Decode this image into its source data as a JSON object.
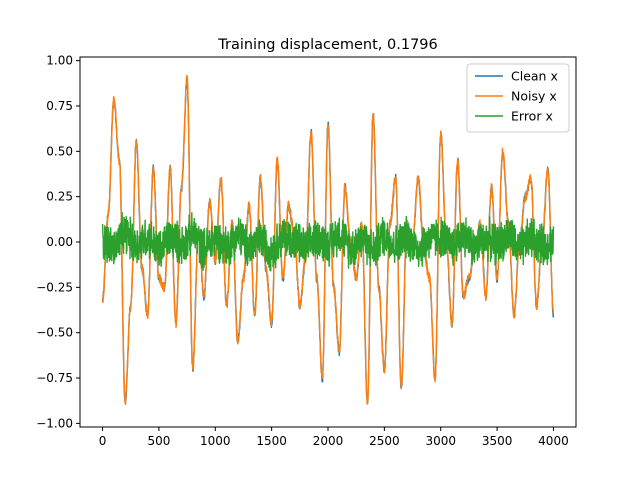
{
  "chart_data": {
    "type": "line",
    "title": "Training displacement, 0.1796",
    "xlabel": "",
    "ylabel": "",
    "xlim": [
      -200,
      4200
    ],
    "ylim": [
      -1.02,
      1.02
    ],
    "xticks": [
      0,
      500,
      1000,
      1500,
      2000,
      2500,
      3000,
      3500,
      4000
    ],
    "yticks": [
      -1.0,
      -0.75,
      -0.5,
      -0.25,
      0.0,
      0.25,
      0.5,
      0.75,
      1.0
    ],
    "ytick_labels": [
      "−1.00",
      "−0.75",
      "−0.50",
      "−0.25",
      "0.00",
      "0.25",
      "0.50",
      "0.75",
      "1.00"
    ],
    "legend_position": "top-right",
    "grid": false,
    "series": [
      {
        "name": "Clean x",
        "color": "#1f77b4",
        "x": [
          0,
          50,
          100,
          150,
          200,
          250,
          300,
          350,
          400,
          450,
          500,
          550,
          600,
          650,
          700,
          750,
          800,
          850,
          900,
          950,
          1000,
          1050,
          1100,
          1150,
          1200,
          1250,
          1300,
          1350,
          1400,
          1450,
          1500,
          1550,
          1600,
          1650,
          1700,
          1750,
          1800,
          1850,
          1900,
          1950,
          2000,
          2050,
          2100,
          2150,
          2200,
          2250,
          2300,
          2350,
          2400,
          2450,
          2500,
          2550,
          2600,
          2650,
          2700,
          2750,
          2800,
          2850,
          2900,
          2950,
          3000,
          3050,
          3100,
          3150,
          3200,
          3250,
          3300,
          3350,
          3400,
          3450,
          3500,
          3550,
          3600,
          3650,
          3700,
          3750,
          3800,
          3850,
          3900,
          3950,
          4000
        ],
        "values": [
          -0.32,
          0.15,
          0.78,
          0.45,
          -0.88,
          -0.35,
          0.55,
          -0.15,
          -0.4,
          0.4,
          -0.2,
          -0.25,
          0.4,
          -0.45,
          0.3,
          0.9,
          -0.7,
          0.05,
          -0.3,
          0.22,
          -0.1,
          0.35,
          -0.35,
          0.1,
          -0.55,
          -0.2,
          0.2,
          -0.4,
          0.35,
          -0.15,
          -0.45,
          0.45,
          -0.2,
          0.2,
          0.05,
          -0.35,
          -0.1,
          0.6,
          -0.2,
          -0.75,
          0.65,
          -0.25,
          -0.6,
          0.3,
          0.0,
          -0.2,
          0.1,
          -0.88,
          0.7,
          -0.25,
          -0.7,
          0.1,
          0.35,
          -0.8,
          0.1,
          0.0,
          0.35,
          -0.05,
          -0.2,
          -0.75,
          0.6,
          0.0,
          -0.45,
          0.45,
          -0.3,
          -0.2,
          -0.05,
          0.1,
          -0.3,
          0.3,
          -0.2,
          0.5,
          0.1,
          -0.4,
          0.0,
          0.25,
          0.35,
          -0.35,
          0.0,
          0.4,
          -0.4
        ]
      },
      {
        "name": "Noisy x",
        "color": "#ff7f0e",
        "x": [
          0,
          50,
          100,
          150,
          200,
          250,
          300,
          350,
          400,
          450,
          500,
          550,
          600,
          650,
          700,
          750,
          800,
          850,
          900,
          950,
          1000,
          1050,
          1100,
          1150,
          1200,
          1250,
          1300,
          1350,
          1400,
          1450,
          1500,
          1550,
          1600,
          1650,
          1700,
          1750,
          1800,
          1850,
          1900,
          1950,
          2000,
          2050,
          2100,
          2150,
          2200,
          2250,
          2300,
          2350,
          2400,
          2450,
          2500,
          2550,
          2600,
          2650,
          2700,
          2750,
          2800,
          2850,
          2900,
          2950,
          3000,
          3050,
          3100,
          3150,
          3200,
          3250,
          3300,
          3350,
          3400,
          3450,
          3500,
          3550,
          3600,
          3650,
          3700,
          3750,
          3800,
          3850,
          3900,
          3950,
          4000
        ],
        "values": [
          -0.32,
          0.15,
          0.78,
          0.45,
          -0.88,
          -0.35,
          0.55,
          -0.15,
          -0.4,
          0.4,
          -0.2,
          -0.25,
          0.4,
          -0.45,
          0.3,
          0.9,
          -0.7,
          0.05,
          -0.3,
          0.22,
          -0.1,
          0.35,
          -0.35,
          0.1,
          -0.55,
          -0.2,
          0.2,
          -0.4,
          0.35,
          -0.15,
          -0.45,
          0.45,
          -0.2,
          0.2,
          0.05,
          -0.35,
          -0.1,
          0.6,
          -0.2,
          -0.75,
          0.65,
          -0.25,
          -0.6,
          0.3,
          0.0,
          -0.2,
          0.1,
          -0.88,
          0.7,
          -0.25,
          -0.7,
          0.1,
          0.35,
          -0.8,
          0.1,
          0.0,
          0.35,
          -0.05,
          -0.2,
          -0.75,
          0.6,
          0.0,
          -0.45,
          0.45,
          -0.3,
          -0.2,
          -0.05,
          0.1,
          -0.3,
          0.3,
          -0.2,
          0.5,
          0.1,
          -0.4,
          0.0,
          0.25,
          0.35,
          -0.35,
          0.0,
          0.4,
          -0.4
        ]
      },
      {
        "name": "Error x",
        "color": "#2ca02c",
        "x": [
          0,
          100,
          200,
          300,
          400,
          500,
          600,
          700,
          800,
          900,
          1000,
          1100,
          1200,
          1300,
          1400,
          1500,
          1600,
          1700,
          1800,
          1900,
          2000,
          2100,
          2200,
          2300,
          2400,
          2500,
          2600,
          2700,
          2800,
          2900,
          3000,
          3100,
          3200,
          3300,
          3400,
          3500,
          3600,
          3700,
          3800,
          3900,
          4000
        ],
        "values": [
          0.02,
          -0.05,
          0.08,
          -0.03,
          0.05,
          -0.08,
          0.04,
          -0.02,
          0.07,
          -0.06,
          0.03,
          -0.04,
          0.06,
          -0.05,
          0.02,
          -0.07,
          0.05,
          0.01,
          -0.06,
          0.04,
          -0.02,
          0.08,
          -0.05,
          0.03,
          -0.07,
          0.06,
          -0.03,
          0.04,
          -0.06,
          0.02,
          0.05,
          -0.04,
          0.07,
          -0.05,
          0.03,
          -0.02,
          0.06,
          -0.07,
          0.04,
          -0.03,
          0.01
        ],
        "amplitude": 0.13
      }
    ]
  }
}
